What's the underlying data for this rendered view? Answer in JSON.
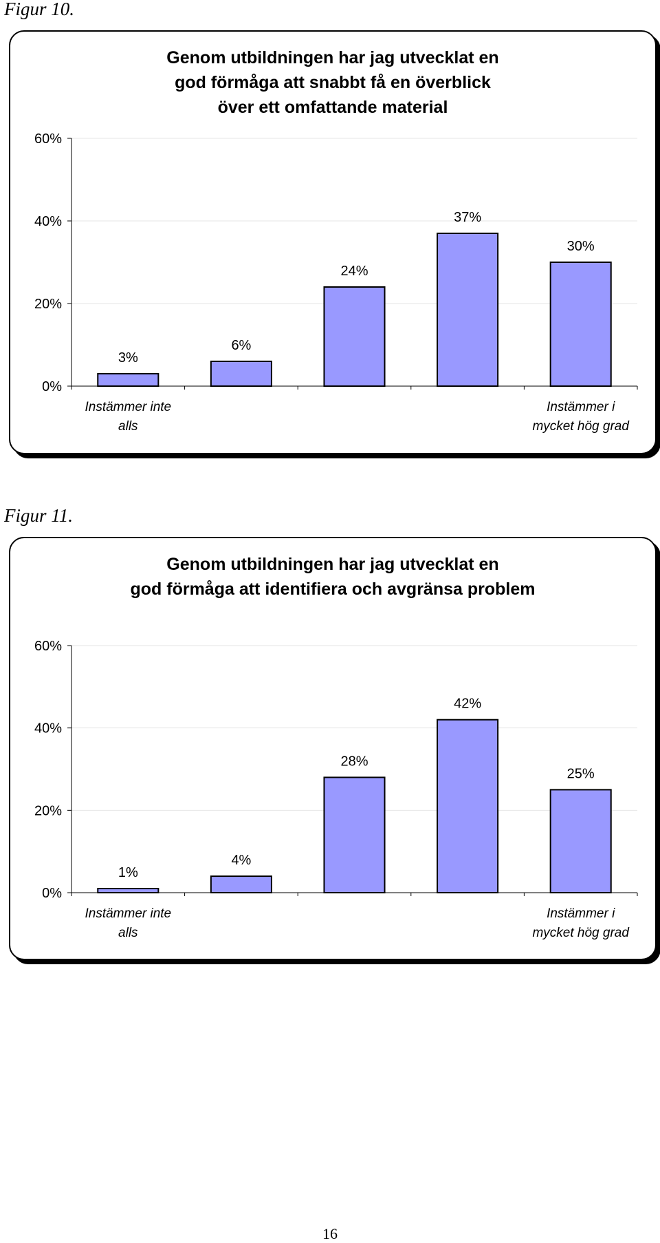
{
  "page_number": "16",
  "figures": [
    {
      "caption": "Figur 10.",
      "title_lines": [
        "Genom utbildningen har jag utvecklat en",
        "god förmåga att snabbt få en överblick",
        "över ett omfattande material"
      ]
    },
    {
      "caption": "Figur 11.",
      "title_lines": [
        "Genom utbildningen har jag utvecklat en",
        "god förmåga att identifiera och avgränsa problem"
      ]
    }
  ],
  "colors": {
    "bar_fill": "#9999ff",
    "bar_stroke": "#000000",
    "gridline": "#e6e6e6"
  },
  "chart_data": [
    {
      "type": "bar",
      "title": "Genom utbildningen har jag utvecklat en god förmåga att snabbt få en överblick över ett omfattande material",
      "categories": [
        "Instämmer inte alls",
        "",
        "",
        "",
        "Instämmer i mycket hög grad"
      ],
      "category_label_lines": [
        [
          "Instämmer inte",
          "alls"
        ],
        [],
        [],
        [],
        [
          "Instämmer i",
          "mycket hög grad"
        ]
      ],
      "values": [
        3,
        6,
        24,
        37,
        30
      ],
      "data_labels": [
        "3%",
        "6%",
        "24%",
        "37%",
        "30%"
      ],
      "ylim": [
        0,
        60
      ],
      "yticks": [
        0,
        20,
        40,
        60
      ],
      "ytick_labels": [
        "0%",
        "20%",
        "40%",
        "60%"
      ],
      "grid": true,
      "legend": "none"
    },
    {
      "type": "bar",
      "title": "Genom utbildningen har jag utvecklat en god förmåga att identifiera och avgränsa problem",
      "categories": [
        "Instämmer inte alls",
        "",
        "",
        "",
        "Instämmer i mycket hög grad"
      ],
      "category_label_lines": [
        [
          "Instämmer inte",
          "alls"
        ],
        [],
        [],
        [],
        [
          "Instämmer i",
          "mycket hög grad"
        ]
      ],
      "values": [
        1,
        4,
        28,
        42,
        25
      ],
      "data_labels": [
        "1%",
        "4%",
        "28%",
        "42%",
        "25%"
      ],
      "ylim": [
        0,
        60
      ],
      "yticks": [
        0,
        20,
        40,
        60
      ],
      "ytick_labels": [
        "0%",
        "20%",
        "40%",
        "60%"
      ],
      "grid": true,
      "legend": "none"
    }
  ]
}
